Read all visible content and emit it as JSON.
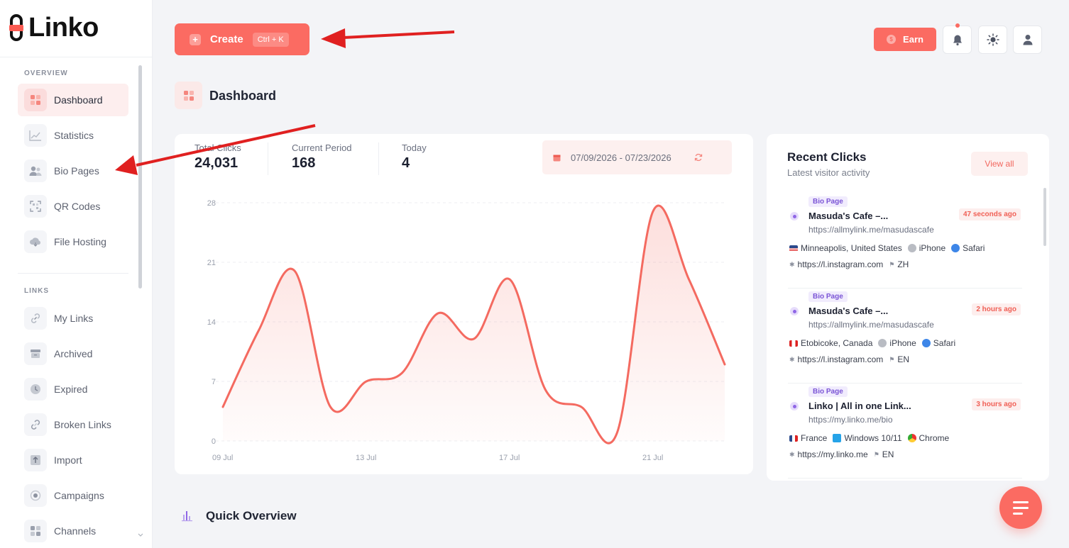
{
  "app": {
    "logo_text": "Linko"
  },
  "sidebar": {
    "sections": [
      {
        "title": "OVERVIEW",
        "items": [
          {
            "label": "Dashboard",
            "icon": "dashboard-icon",
            "active": true
          },
          {
            "label": "Statistics",
            "icon": "chart-icon"
          },
          {
            "label": "Bio Pages",
            "icon": "users-icon"
          },
          {
            "label": "QR Codes",
            "icon": "qr-icon"
          },
          {
            "label": "File Hosting",
            "icon": "cloud-icon"
          }
        ]
      },
      {
        "title": "LINKS",
        "items": [
          {
            "label": "My Links",
            "icon": "link-icon"
          },
          {
            "label": "Archived",
            "icon": "archive-icon"
          },
          {
            "label": "Expired",
            "icon": "clock-icon"
          },
          {
            "label": "Broken Links",
            "icon": "broken-link-icon"
          },
          {
            "label": "Import",
            "icon": "import-icon"
          },
          {
            "label": "Campaigns",
            "icon": "target-icon"
          },
          {
            "label": "Channels",
            "icon": "grid-icon"
          }
        ]
      }
    ]
  },
  "topbar": {
    "create_label": "Create",
    "create_shortcut": "Ctrl + K",
    "earn_label": "Earn",
    "earn_coin": "$"
  },
  "page": {
    "title": "Dashboard"
  },
  "stats": {
    "total_clicks_label": "Total Clicks",
    "total_clicks_value": "24,031",
    "current_period_label": "Current Period",
    "current_period_value": "168",
    "today_label": "Today",
    "today_value": "4",
    "date_range": "07/09/2026 - 07/23/2026"
  },
  "chart_data": {
    "type": "area",
    "x": [
      "09 Jul",
      "10 Jul",
      "11 Jul",
      "12 Jul",
      "13 Jul",
      "14 Jul",
      "15 Jul",
      "16 Jul",
      "17 Jul",
      "18 Jul",
      "19 Jul",
      "20 Jul",
      "21 Jul",
      "22 Jul",
      "23 Jul"
    ],
    "series": [
      {
        "values": [
          4,
          13,
          20,
          4,
          7,
          8,
          15,
          12,
          19,
          6,
          4,
          1,
          27,
          19,
          9
        ]
      }
    ],
    "ylim": [
      0,
      28
    ],
    "yticks": [
      "0",
      "7",
      "14",
      "21",
      "28"
    ],
    "xtick_labels": [
      "09 Jul",
      "13 Jul",
      "17 Jul",
      "21 Jul"
    ],
    "grid": true,
    "line_color": "#f46a60"
  },
  "recent_clicks": {
    "title": "Recent Clicks",
    "subtitle": "Latest visitor activity",
    "view_all_label": "View all",
    "items": [
      {
        "badge": "Bio Page",
        "name": "Masuda's Cafe –...",
        "time": "47 seconds ago",
        "url": "https://allmylink.me/masudascafe",
        "location": "Minneapolis, United States",
        "device": "iPhone",
        "browser": "Safari",
        "referrer": "https://l.instagram.com",
        "language": "ZH"
      },
      {
        "badge": "Bio Page",
        "name": "Masuda's Cafe –...",
        "time": "2 hours ago",
        "url": "https://allmylink.me/masudascafe",
        "location": "Etobicoke, Canada",
        "device": "iPhone",
        "browser": "Safari",
        "referrer": "https://l.instagram.com",
        "language": "EN"
      },
      {
        "badge": "Bio Page",
        "name": "Linko | All in one Link...",
        "time": "3 hours ago",
        "url": "https://my.linko.me/bio",
        "location": "France",
        "device": "Windows 10/11",
        "browser": "Chrome",
        "referrer": "https://my.linko.me",
        "language": "EN"
      }
    ]
  },
  "quick_overview": {
    "title": "Quick Overview"
  },
  "colors": {
    "accent": "#fb6b62",
    "annotation_arrow": "#e02020"
  }
}
